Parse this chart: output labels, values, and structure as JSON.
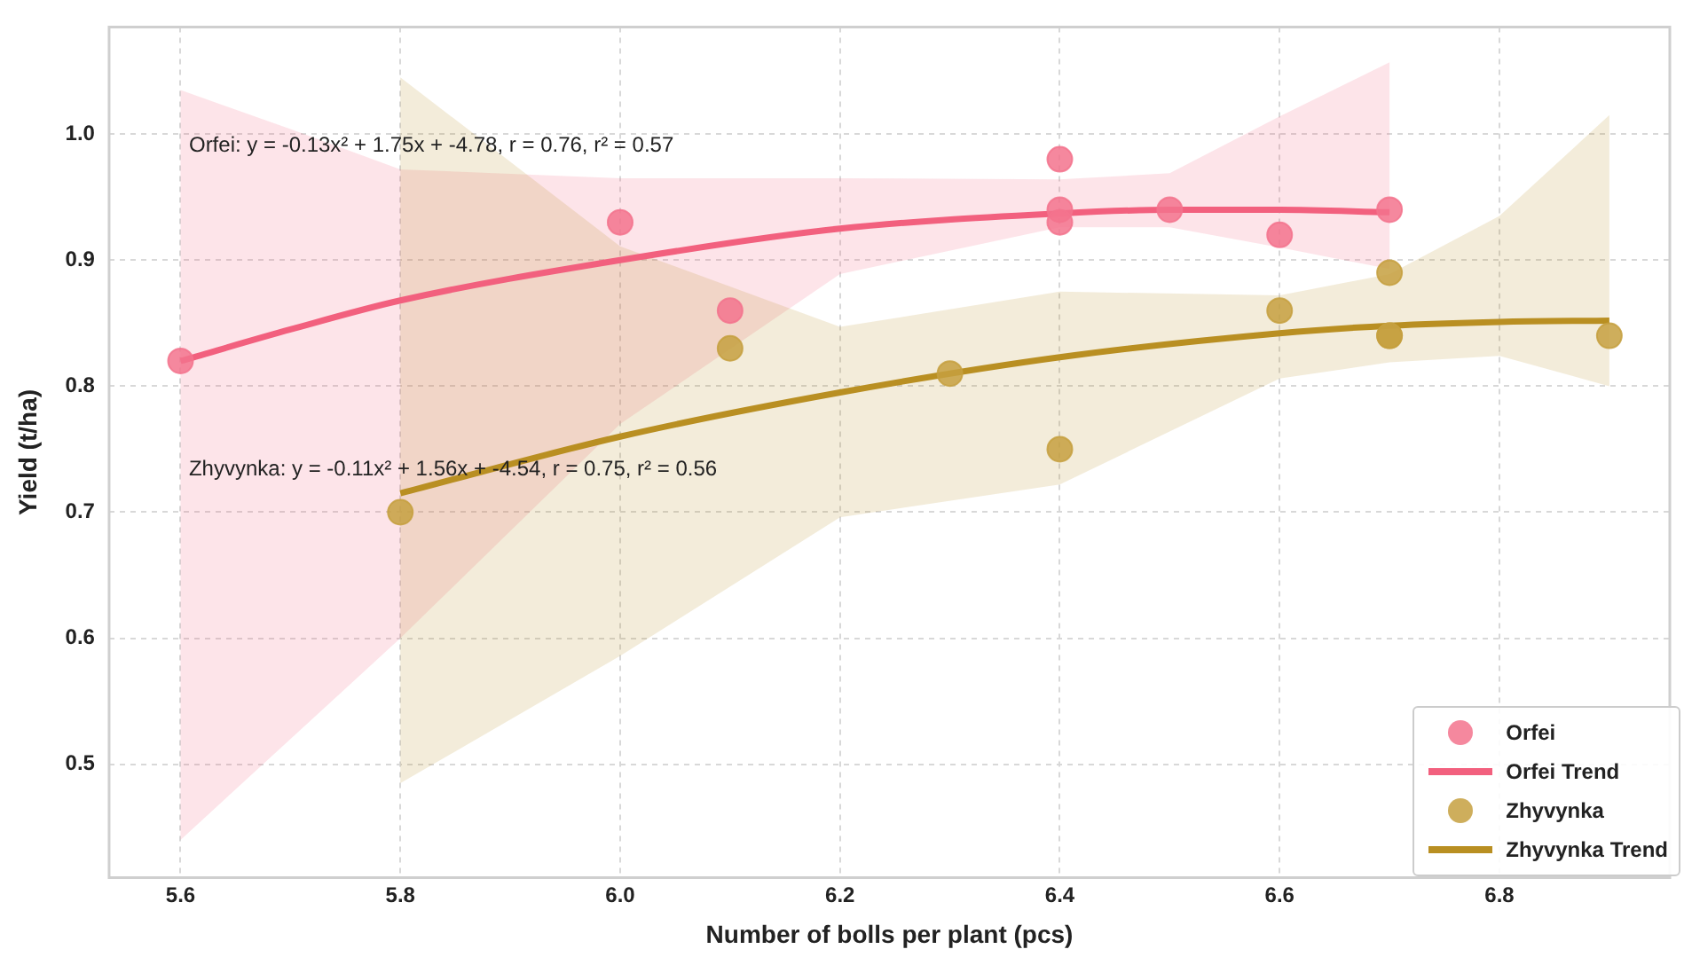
{
  "chart_data": {
    "type": "scatter",
    "xlabel": "Number of bolls per plant (pcs)",
    "ylabel": "Yield (t/ha)",
    "xlim": [
      5.535,
      6.955
    ],
    "ylim": [
      0.41,
      1.085
    ],
    "xticks": [
      5.6,
      5.8,
      {
        "value": 6,
        "label": "6.0"
      },
      6.2,
      6.4,
      6.6,
      6.8
    ],
    "yticks": [
      0.5,
      0.6,
      0.7,
      0.8,
      0.9,
      {
        "value": 1,
        "label": "1.0"
      }
    ],
    "grid": true,
    "legend": "bottom right",
    "annotations": [
      "Orfei: y = -0.13x² + 1.75x + -4.78, r = 0.76, r² = 0.57",
      "Zhyvynka: y = -0.11x² + 1.56x + -4.54, r = 0.75, r² = 0.56"
    ],
    "series": [
      {
        "name": "Orfei",
        "marker": "circle",
        "color": "#f3738d",
        "x": [
          5.6,
          6.0,
          6.1,
          6.4,
          6.4,
          6.4,
          6.5,
          6.6,
          6.7
        ],
        "values": [
          0.82,
          0.93,
          0.86,
          0.98,
          0.94,
          0.93,
          0.94,
          0.92,
          0.94
        ]
      },
      {
        "name": "Orfei Trend",
        "type": "line",
        "marker": "none",
        "color": "#f2607e",
        "x": [
          5.6,
          5.7,
          5.8,
          6.0,
          6.2,
          6.4,
          6.5,
          6.6,
          6.7
        ],
        "values": [
          0.82,
          0.845,
          0.868,
          0.9,
          0.925,
          0.937,
          0.94,
          0.94,
          0.938
        ],
        "lower": [
          0.44,
          0.52,
          0.6,
          0.77,
          0.889,
          0.926,
          0.926,
          0.91,
          0.893
        ],
        "upper": [
          1.035,
          1.004,
          0.972,
          0.965,
          0.965,
          0.964,
          0.969,
          1.014,
          1.057
        ]
      },
      {
        "name": "Zhyvynka",
        "marker": "circle",
        "color": "#c6a040",
        "x": [
          5.8,
          6.1,
          6.3,
          6.4,
          6.6,
          6.7,
          6.7,
          6.7,
          6.9
        ],
        "values": [
          0.7,
          0.83,
          0.81,
          0.75,
          0.86,
          0.89,
          0.84,
          0.84,
          0.84
        ]
      },
      {
        "name": "Zhyvynka Trend",
        "type": "line",
        "marker": "none",
        "color": "#b98f22",
        "x": [
          5.8,
          6.0,
          6.2,
          6.4,
          6.6,
          6.7,
          6.8,
          6.9
        ],
        "values": [
          0.715,
          0.76,
          0.795,
          0.823,
          0.842,
          0.848,
          0.851,
          0.852
        ],
        "lower": [
          0.485,
          0.586,
          0.696,
          0.722,
          0.806,
          0.819,
          0.824,
          0.8
        ],
        "upper": [
          1.045,
          0.911,
          0.847,
          0.875,
          0.872,
          0.889,
          0.935,
          1.015
        ]
      }
    ]
  }
}
